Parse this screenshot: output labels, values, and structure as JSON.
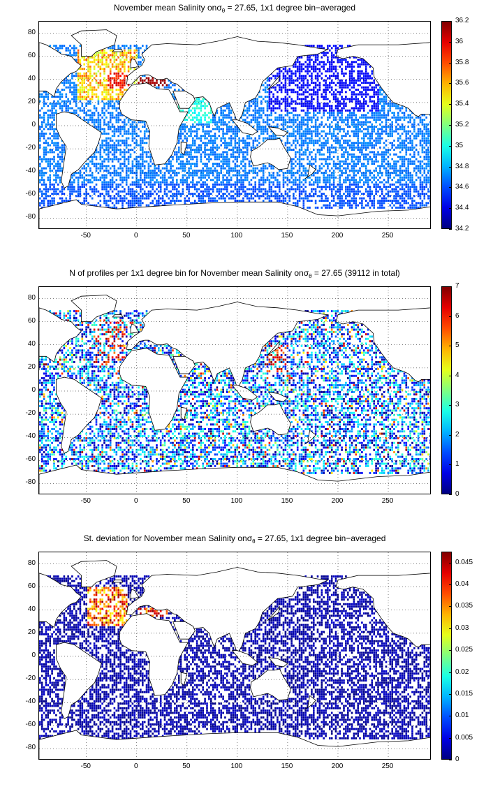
{
  "panels": [
    {
      "title_pre": "November mean Salinity on",
      "title_sigma": "σ",
      "title_sub": "θ",
      "title_post": " = 27.65, 1x1 degree bin−averaged",
      "colorbar": {
        "min": 34.2,
        "max": 36.2,
        "ticks": [
          "34.2",
          "34.4",
          "34.6",
          "34.8",
          "35",
          "35.2",
          "35.4",
          "35.6",
          "35.8",
          "36",
          "36.2"
        ]
      },
      "variable": "salinity"
    },
    {
      "title_pre": "N of profiles per 1x1 degree bin for November mean Salinity on",
      "title_sigma": "σ",
      "title_sub": "θ",
      "title_post": " = 27.65 (39112 in total)",
      "colorbar": {
        "min": 0,
        "max": 7,
        "ticks": [
          "0",
          "1",
          "2",
          "3",
          "4",
          "5",
          "6",
          "7"
        ]
      },
      "variable": "count"
    },
    {
      "title_pre": "St. deviation for November mean Salinity on",
      "title_sigma": "σ",
      "title_sub": "θ",
      "title_post": " = 27.65, 1x1 degree bin−averaged",
      "colorbar": {
        "min": 0,
        "max": 0.0475,
        "ticks": [
          "0",
          "0.005",
          "0.01",
          "0.015",
          "0.02",
          "0.025",
          "0.03",
          "0.035",
          "0.04",
          "0.045"
        ]
      },
      "variable": "stdev"
    }
  ],
  "axes": {
    "x_ticks": [
      "-50",
      "0",
      "50",
      "100",
      "150",
      "200",
      "250"
    ],
    "x_values": [
      -50,
      0,
      50,
      100,
      150,
      200,
      250
    ],
    "y_ticks": [
      "80",
      "60",
      "40",
      "20",
      "0",
      "-20",
      "-40",
      "-60",
      "-80"
    ],
    "y_values": [
      80,
      60,
      40,
      20,
      0,
      -20,
      -40,
      -60,
      -80
    ],
    "xlim": [
      -97,
      293
    ],
    "ylim": [
      -90,
      90
    ],
    "grid": true,
    "grid_style": "dotted"
  },
  "colormap": "jet",
  "colors": {
    "coast": "#000000",
    "land": "#ffffff",
    "grid": "#000000"
  }
}
